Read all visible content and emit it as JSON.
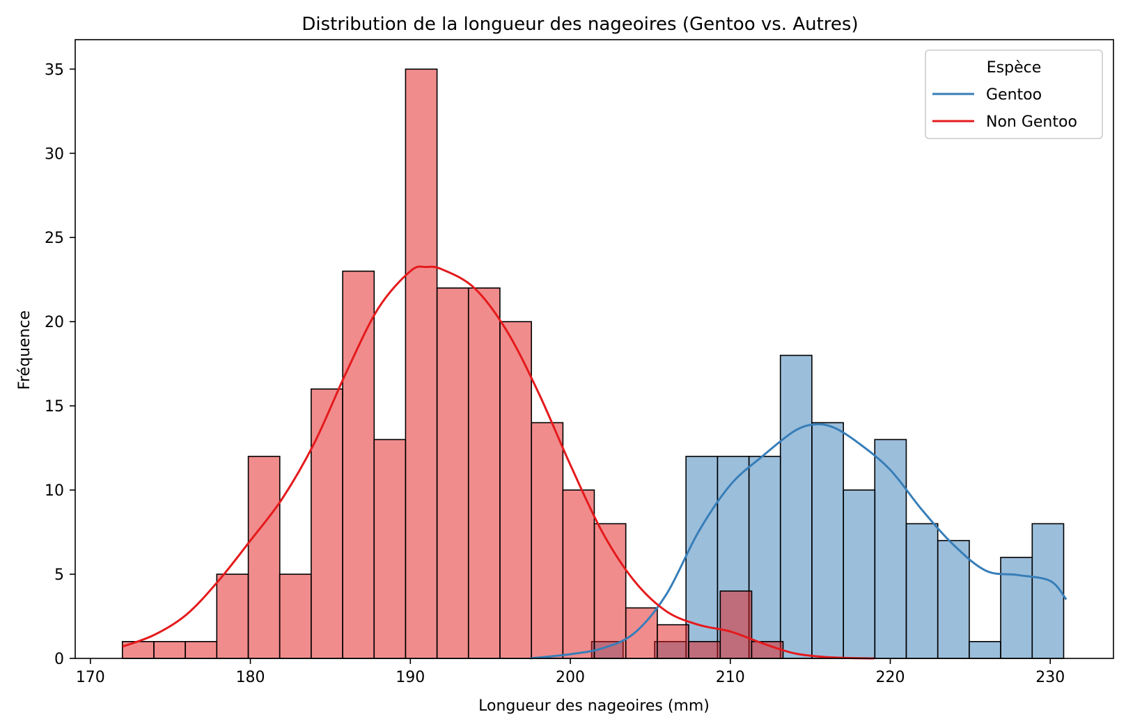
{
  "chart_data": {
    "type": "bar",
    "title": "Distribution de la longueur des nageoires (Gentoo vs. Autres)",
    "xlabel": "Longueur des nageoires (mm)",
    "ylabel": "Fréquence",
    "xlim": [
      169.05,
      233.95
    ],
    "ylim": [
      0,
      36.75
    ],
    "xticks": [
      "170",
      "180",
      "190",
      "200",
      "210",
      "220",
      "230"
    ],
    "yticks": [
      "0",
      "5",
      "10",
      "15",
      "20",
      "25",
      "30",
      "35"
    ],
    "grid": false,
    "bin_width": 1.967,
    "legend": {
      "title": "Espèce",
      "placement": "top-right",
      "entries": [
        "Gentoo",
        "Non Gentoo"
      ]
    },
    "series": [
      {
        "name": "Gentoo",
        "color": "#377eb8",
        "bin_starts": [
          201.33,
          203.3,
          205.27,
          207.23,
          209.2,
          211.17,
          213.13,
          215.1,
          217.07,
          219.03,
          221.0,
          222.97,
          224.93,
          226.9,
          228.87
        ],
        "values": [
          1,
          0,
          1,
          12,
          12,
          12,
          18,
          14,
          10,
          13,
          8,
          7,
          1,
          6,
          8
        ],
        "kde": {
          "x": [
            197.5,
            200,
            202,
            204,
            206,
            208,
            210,
            212,
            214,
            215.3,
            216.5,
            218,
            220,
            222,
            224,
            226,
            228,
            230,
            231
          ],
          "y": [
            0,
            0.25,
            0.6,
            1.5,
            3.8,
            7.5,
            10.3,
            12.0,
            13.5,
            13.9,
            13.7,
            12.8,
            11.2,
            8.8,
            6.7,
            5.2,
            4.95,
            4.6,
            3.5
          ]
        }
      },
      {
        "name": "Non Gentoo",
        "color": "#e41a1c",
        "bin_starts": [
          172.0,
          173.97,
          175.93,
          177.9,
          179.87,
          181.83,
          183.8,
          185.77,
          187.73,
          189.7,
          191.67,
          193.63,
          195.6,
          197.57,
          199.53,
          201.5,
          203.47,
          205.43,
          207.4,
          209.37,
          211.33
        ],
        "values": [
          1,
          1,
          1,
          5,
          12,
          5,
          16,
          23,
          13,
          35,
          22,
          22,
          20,
          14,
          10,
          8,
          3,
          2,
          1,
          4,
          1
        ],
        "kde": {
          "x": [
            172,
            174,
            176,
            178,
            180,
            182,
            184,
            186,
            188,
            190,
            191,
            192,
            194,
            196,
            198,
            200,
            202,
            204,
            206,
            208,
            210,
            212,
            214,
            216,
            218,
            219
          ],
          "y": [
            0.7,
            1.4,
            2.6,
            4.6,
            7.0,
            9.5,
            12.8,
            17.0,
            20.8,
            23.0,
            23.25,
            23.1,
            22.0,
            19.5,
            15.8,
            11.5,
            7.5,
            4.6,
            2.8,
            2.0,
            1.6,
            0.9,
            0.3,
            0.08,
            0.01,
            0
          ]
        }
      }
    ]
  }
}
